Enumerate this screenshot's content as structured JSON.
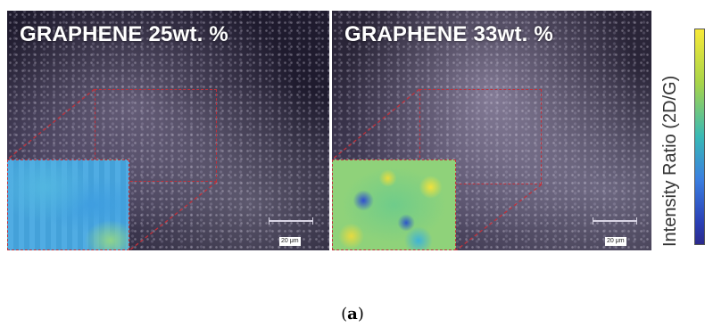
{
  "panels": [
    {
      "title": "GRAPHENE 25wt. %",
      "scale_label": "20 μm"
    },
    {
      "title": "GRAPHENE 33wt. %",
      "scale_label": "20 μm"
    }
  ],
  "colorbar": {
    "title": "Intensity Ratio (2D/G)",
    "colors": [
      "#f7e938",
      "#a7d449",
      "#38b9b6",
      "#3a7ee0",
      "#2b2a8c"
    ]
  },
  "caption": {
    "open": "(",
    "letter": "a",
    "close": ")"
  },
  "colors": {
    "roi_outline": "#c0303a"
  }
}
